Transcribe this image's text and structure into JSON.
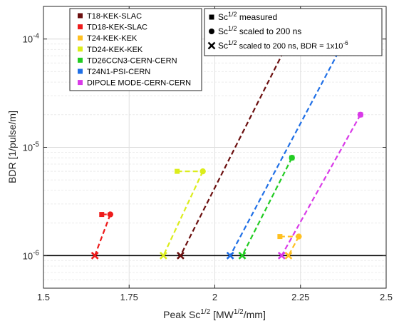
{
  "chart_data": {
    "type": "scatter",
    "xlabel": "Peak Sc",
    "xlabel_sup": "1/2",
    "xlabel_unit_pre": "[MW",
    "xlabel_unit_sup": "1/2",
    "xlabel_unit_post": "/mm]",
    "ylabel": "BDR [1/pulse/m]",
    "xlim": [
      1.5,
      2.5
    ],
    "ylim": [
      5e-07,
      0.0002
    ],
    "yscale": "log",
    "grid": true,
    "x_ticks": [
      1.5,
      1.75,
      2,
      2.25,
      2.5
    ],
    "x_tick_labels": [
      "1.5",
      "1.75",
      "2",
      "2.25",
      "2.5"
    ],
    "y_ticks": [
      1e-06,
      1e-05,
      0.0001
    ],
    "y_tick_exponents": [
      "-6",
      "-5",
      "-4"
    ],
    "y_tick_base": "10",
    "reference_line_y": 1e-06,
    "series": [
      {
        "name": "T18-KEK-SLAC",
        "color": "#6b0f0f",
        "measured": [
          2.16,
          7.6e-05
        ],
        "scaled": [
          2.2,
          7.6e-05
        ],
        "scaled_bdr": [
          1.9,
          1e-06
        ]
      },
      {
        "name": "TD18-KEK-SLAC",
        "color": "#ee1c1c",
        "measured": [
          1.67,
          2.4e-06
        ],
        "scaled": [
          1.695,
          2.4e-06
        ],
        "scaled_bdr": [
          1.65,
          1e-06
        ]
      },
      {
        "name": "T24-KEK-KEK",
        "color": "#ffc020",
        "measured": [
          2.19,
          1.5e-06
        ],
        "scaled": [
          2.245,
          1.5e-06
        ],
        "scaled_bdr": [
          2.215,
          1e-06
        ]
      },
      {
        "name": "TD24-KEK-KEK",
        "color": "#dced1c",
        "measured": [
          1.89,
          6e-06
        ],
        "scaled": [
          1.965,
          6e-06
        ],
        "scaled_bdr": [
          1.85,
          1e-06
        ]
      },
      {
        "name": "TD26CCN3-CERN-CERN",
        "color": "#22cc22",
        "measured": [
          2.225,
          8e-06
        ],
        "scaled": [
          2.225,
          8e-06
        ],
        "scaled_bdr": [
          2.08,
          1e-06
        ]
      },
      {
        "name": "T24N1-PSI-CERN",
        "color": "#1f6fe6",
        "measured": [
          2.36,
          7.5e-05
        ],
        "scaled": [
          2.36,
          7.5e-05
        ],
        "scaled_bdr": [
          2.045,
          1e-06
        ]
      },
      {
        "name": "DIPOLE MODE-CERN-CERN",
        "color": "#d93ae8",
        "measured": [
          2.425,
          2e-05
        ],
        "scaled": [
          2.425,
          2e-05
        ],
        "scaled_bdr": [
          2.195,
          1e-06
        ]
      }
    ],
    "marker_legend": [
      {
        "marker": "square",
        "pre": "Sc",
        "sup": "1/2",
        "post": " measured"
      },
      {
        "marker": "circle",
        "pre": "Sc",
        "sup": "1/2",
        "post": " scaled to 200 ns"
      },
      {
        "marker": "cross",
        "pre": "Sc",
        "sup": "1/2",
        "post": " scaled to 200 ns, BDR = 1x10",
        "post_sup": "-6"
      }
    ]
  }
}
